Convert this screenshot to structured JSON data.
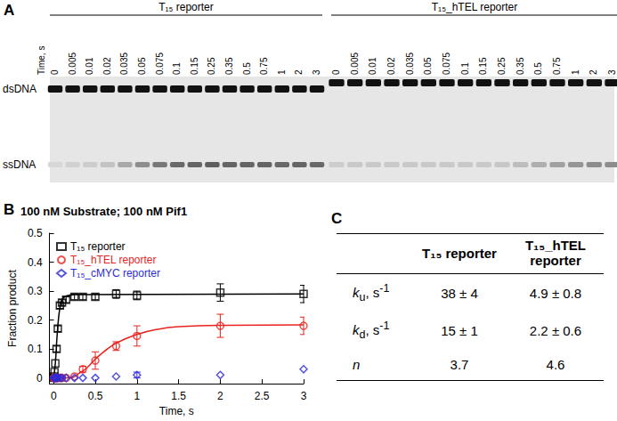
{
  "gel": {
    "panel": "A",
    "time_label": "Time, s",
    "bands": [
      "dsDNA",
      "ssDNA"
    ],
    "reporters": [
      {
        "name": "T₁₅ reporter",
        "times": [
          "0",
          "0.005",
          "0.01",
          "0.02",
          "0.035",
          "0.05",
          "0.075",
          "0.1",
          "0.15",
          "0.25",
          "0.35",
          "0.5",
          "0.75",
          "1",
          "2",
          "3"
        ],
        "ssDNA_intensity": [
          0.05,
          0.08,
          0.1,
          0.15,
          0.28,
          0.42,
          0.52,
          0.6,
          0.62,
          0.65,
          0.62,
          0.62,
          0.62,
          0.6,
          0.62,
          0.6
        ]
      },
      {
        "name": "T₁₅_hTEL reporter",
        "times": [
          "0",
          "0.005",
          "0.01",
          "0.02",
          "0.035",
          "0.05",
          "0.075",
          "0.1",
          "0.15",
          "0.25",
          "0.35",
          "0.5",
          "0.75",
          "1",
          "2",
          "3"
        ],
        "ssDNA_intensity": [
          0.1,
          0.12,
          0.12,
          0.12,
          0.12,
          0.12,
          0.12,
          0.12,
          0.12,
          0.13,
          0.18,
          0.25,
          0.32,
          0.38,
          0.42,
          0.42
        ]
      }
    ]
  },
  "chart_data": {
    "panel": "B",
    "type": "scatter",
    "title": "100 nM Substrate; 100 nM Pif1",
    "x_label": "Time, s",
    "y_label": "Fraction product",
    "x": [
      0,
      0.005,
      0.01,
      0.02,
      0.035,
      0.05,
      0.075,
      0.1,
      0.15,
      0.25,
      0.35,
      0.5,
      0.75,
      1,
      2,
      3
    ],
    "series": [
      {
        "name": "T₁₅ reporter",
        "color": "#000000",
        "marker": "square",
        "values": [
          0,
          0.005,
          0.02,
          0.05,
          0.1,
          0.17,
          0.25,
          0.26,
          0.27,
          0.28,
          0.28,
          0.28,
          0.29,
          0.285,
          0.295,
          0.29
        ],
        "errors": [
          null,
          null,
          null,
          null,
          0.01,
          0.01,
          0.01,
          0.01,
          0.01,
          0.01,
          0.01,
          0.01,
          0.015,
          0.015,
          0.03,
          0.03
        ],
        "fit": {
          "x": [
            0,
            0.02,
            0.04,
            0.06,
            0.08,
            0.1,
            0.15,
            0.25,
            3
          ],
          "values": [
            0,
            0.05,
            0.14,
            0.21,
            0.25,
            0.27,
            0.283,
            0.288,
            0.29
          ]
        }
      },
      {
        "name": "T₁₅_hTEL reporter",
        "color": "#e8231f",
        "marker": "circle",
        "values": [
          0,
          0,
          0,
          0,
          0,
          0,
          0,
          0,
          0,
          0.005,
          0.03,
          0.06,
          0.11,
          0.145,
          0.18,
          0.18
        ],
        "errors": [
          null,
          null,
          null,
          null,
          null,
          null,
          null,
          null,
          null,
          null,
          0.01,
          0.03,
          0.015,
          0.035,
          0.04,
          0.03
        ],
        "fit": {
          "x": [
            0,
            0.2,
            0.3,
            0.4,
            0.5,
            0.6,
            0.75,
            1,
            1.25,
            1.5,
            2,
            3
          ],
          "values": [
            0,
            0,
            0.015,
            0.035,
            0.065,
            0.09,
            0.12,
            0.15,
            0.168,
            0.177,
            0.182,
            0.183
          ]
        }
      },
      {
        "name": "T₁₅_cMYC reporter",
        "color": "#2b2bd9",
        "marker": "diamond",
        "values": [
          0,
          0,
          0,
          0,
          0,
          0,
          0,
          0,
          0,
          0,
          0,
          0,
          0.005,
          0.01,
          0.01,
          0.03
        ],
        "errors": [
          null,
          null,
          null,
          null,
          null,
          null,
          null,
          null,
          null,
          null,
          null,
          null,
          null,
          0.01,
          null,
          null
        ]
      }
    ],
    "xlim": [
      -0.05,
      3
    ],
    "xticks": [
      0,
      0.5,
      1,
      1.5,
      2,
      2.5,
      3
    ],
    "ylim": [
      -0.02,
      0.5
    ],
    "yticks": [
      0,
      0.1,
      0.2,
      0.3,
      0.4,
      0.5
    ],
    "grid": false,
    "legend": "upper left"
  },
  "table": {
    "panel": "C",
    "columns": [
      "T₁₅ reporter",
      "T₁₅_hTEL reporter"
    ],
    "rows": [
      {
        "label": {
          "symbol": "k",
          "sub": "u",
          "unit": ", s",
          "sup": "-1"
        },
        "values": [
          "38 ± 4",
          "4.9 ± 0.8"
        ]
      },
      {
        "label": {
          "symbol": "k",
          "sub": "d",
          "unit": ", s",
          "sup": "-1"
        },
        "values": [
          "15 ± 1",
          "2.2 ± 0.6"
        ]
      },
      {
        "label": {
          "symbol": "n"
        },
        "values": [
          "3.7",
          "4.6"
        ]
      }
    ]
  }
}
